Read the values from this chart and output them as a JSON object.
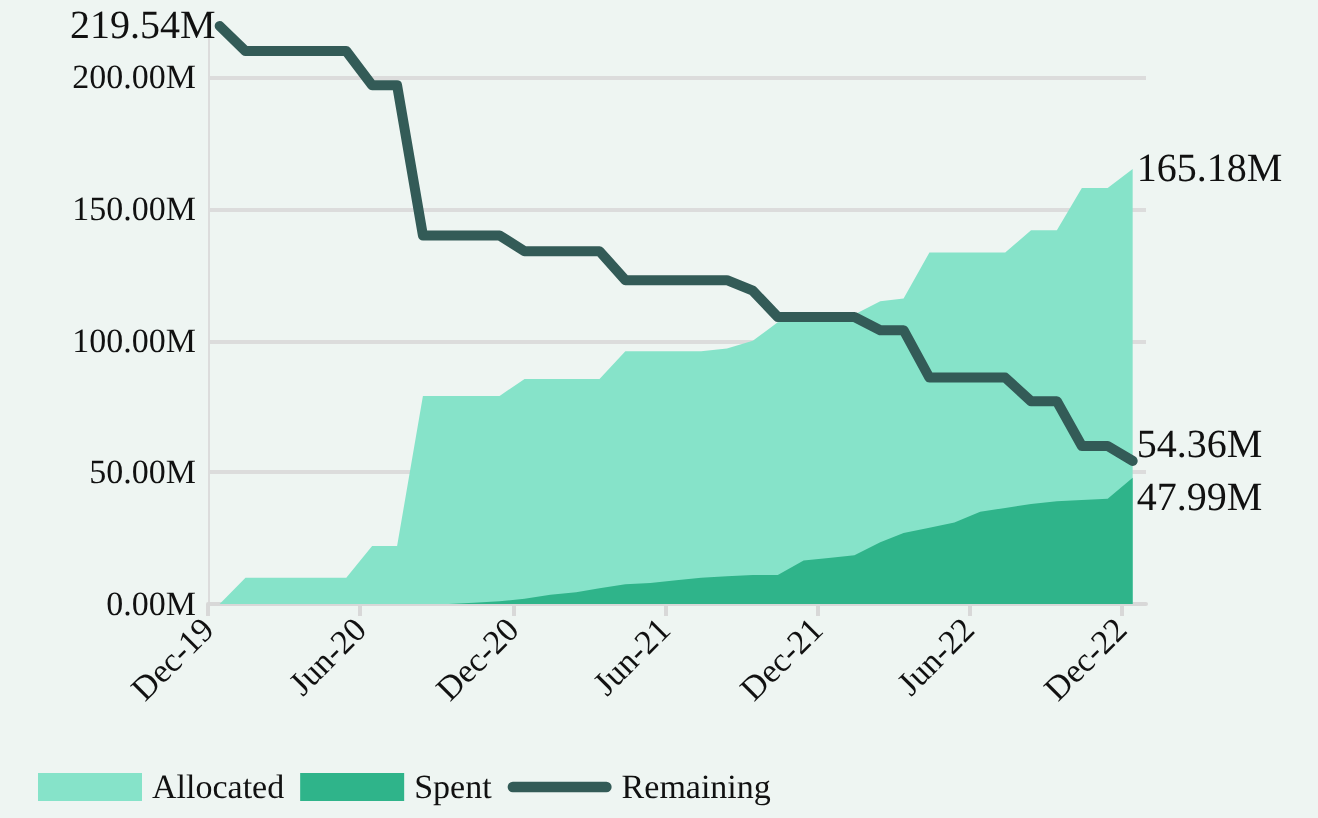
{
  "chart_data": {
    "type": "area",
    "x": [
      "2019-12-15",
      "2020-01-15",
      "2020-02-15",
      "2020-03-15",
      "2020-04-15",
      "2020-05-15",
      "2020-06-15",
      "2020-07-15",
      "2020-08-15",
      "2020-09-15",
      "2020-10-15",
      "2020-11-15",
      "2020-12-15",
      "2021-01-15",
      "2021-02-15",
      "2021-03-15",
      "2021-04-15",
      "2021-05-15",
      "2021-06-15",
      "2021-07-15",
      "2021-08-15",
      "2021-09-15",
      "2021-10-15",
      "2021-11-15",
      "2021-12-15",
      "2022-01-15",
      "2022-02-15",
      "2022-03-15",
      "2022-04-15",
      "2022-05-15",
      "2022-06-15",
      "2022-07-15",
      "2022-08-15",
      "2022-09-15",
      "2022-10-15",
      "2022-11-15",
      "2022-12-15"
    ],
    "series": [
      {
        "name": "Allocated",
        "color": "#86e3c9",
        "values": [
          0,
          10,
          10,
          10,
          10,
          10,
          22,
          22,
          79,
          79,
          79,
          79,
          85.5,
          85.5,
          85.5,
          85.5,
          96,
          96,
          96,
          96,
          97,
          100,
          107,
          108,
          109,
          110,
          115,
          116,
          133.5,
          133.5,
          133.5,
          133.5,
          142,
          142,
          158,
          158,
          165.18
        ],
        "value_labels": [
          null,
          null,
          null,
          null,
          null,
          null,
          null,
          null,
          null,
          null,
          null,
          null,
          null,
          null,
          null,
          null,
          null,
          null,
          null,
          null,
          null,
          null,
          null,
          null,
          null,
          null,
          null,
          null,
          null,
          null,
          null,
          null,
          null,
          null,
          null,
          null,
          "165.18M"
        ]
      },
      {
        "name": "Spent",
        "color": "#2fb48a",
        "values": [
          0,
          0,
          0,
          0,
          0,
          0,
          0,
          0,
          0,
          0,
          0.5,
          1,
          2,
          3.5,
          4.5,
          6,
          7.5,
          8,
          9,
          10,
          10.5,
          11,
          11,
          16.5,
          17.5,
          18.5,
          23.5,
          27,
          29,
          31,
          35,
          36.5,
          38,
          39,
          39.5,
          40,
          47.99
        ],
        "value_labels": [
          null,
          null,
          null,
          null,
          null,
          null,
          null,
          null,
          null,
          null,
          null,
          null,
          null,
          null,
          null,
          null,
          null,
          null,
          null,
          null,
          null,
          null,
          null,
          null,
          null,
          null,
          null,
          null,
          null,
          null,
          null,
          null,
          null,
          null,
          null,
          null,
          "47.99M"
        ]
      },
      {
        "name": "Remaining",
        "type": "line",
        "color": "#335b57",
        "values": [
          219.54,
          210,
          210,
          210,
          210,
          210,
          197,
          197,
          140,
          140,
          140,
          140,
          134,
          134,
          134,
          134,
          123,
          123,
          123,
          123,
          123,
          119,
          109,
          109,
          109,
          109,
          104,
          104,
          86,
          86,
          86,
          86,
          77,
          77,
          60,
          60,
          54.36
        ],
        "value_labels": [
          "219.54M",
          null,
          null,
          null,
          null,
          null,
          null,
          null,
          null,
          null,
          null,
          null,
          null,
          null,
          null,
          null,
          null,
          null,
          null,
          null,
          null,
          null,
          null,
          null,
          null,
          null,
          null,
          null,
          null,
          null,
          null,
          null,
          null,
          null,
          null,
          null,
          "54.36M"
        ]
      }
    ],
    "xlim": [
      "2019-12-01",
      "2022-12-31"
    ],
    "xticks": [
      {
        "value": "2019-12-01",
        "label": "Dec-19"
      },
      {
        "value": "2020-06-01",
        "label": "Jun-20"
      },
      {
        "value": "2020-12-01",
        "label": "Dec-20"
      },
      {
        "value": "2021-06-01",
        "label": "Jun-21"
      },
      {
        "value": "2021-12-01",
        "label": "Dec-21"
      },
      {
        "value": "2022-06-01",
        "label": "Jun-22"
      },
      {
        "value": "2022-12-01",
        "label": "Dec-22"
      }
    ],
    "yticks": [
      {
        "value": 0,
        "label": "0.00M"
      },
      {
        "value": 50,
        "label": "50.00M"
      },
      {
        "value": 100,
        "label": "100.00M"
      },
      {
        "value": 150,
        "label": "150.00M"
      },
      {
        "value": 200,
        "label": "200.00M"
      }
    ],
    "ylim": [
      0,
      219.54
    ],
    "grid": "y",
    "legend": "bottom left",
    "marker": "none"
  }
}
